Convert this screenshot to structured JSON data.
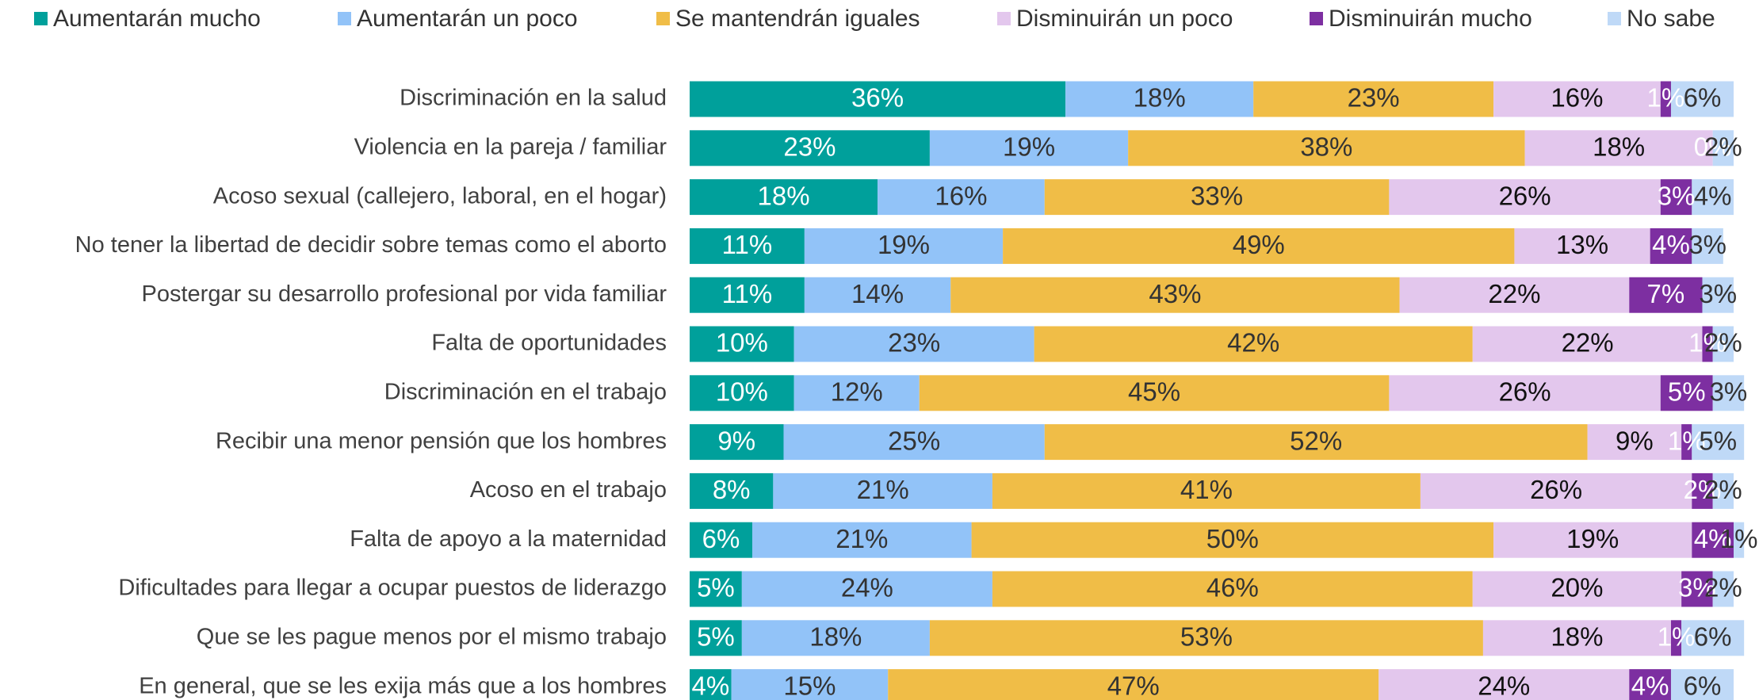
{
  "chart_data": {
    "type": "stacked-bar-horizontal",
    "categories": [
      "Discriminación en la salud",
      "Violencia en la pareja / familiar",
      "Acoso sexual (callejero, laboral, en el hogar)",
      "No tener la libertad de decidir sobre temas como el aborto",
      "Postergar su desarrollo profesional por vida familiar",
      "Falta de oportunidades",
      "Discriminación en el trabajo",
      "Recibir una menor pensión que los hombres",
      "Acoso en el trabajo",
      "Falta de apoyo a la maternidad",
      "Dificultades para llegar a ocupar puestos de liderazgo",
      "Que se les pague menos por el mismo trabajo",
      "En general, que se les exija más que a los hombres"
    ],
    "xlim": [
      0,
      100
    ],
    "series": [
      {
        "name": "Aumentarán mucho",
        "color": "#00a09b",
        "label_color": "#ffffff",
        "values": [
          36,
          23,
          18,
          11,
          11,
          10,
          10,
          9,
          8,
          6,
          5,
          5,
          4
        ],
        "value_labels": [
          "36%",
          "23%",
          "18%",
          "11%",
          "11%",
          "10%",
          "10%",
          "9%",
          "8%",
          "6%",
          "5%",
          "5%",
          "4%"
        ]
      },
      {
        "name": "Aumentarán un poco",
        "color": "#92c3f8",
        "label_color": "#333333",
        "values": [
          18,
          19,
          16,
          19,
          14,
          23,
          12,
          25,
          21,
          21,
          24,
          18,
          15
        ],
        "value_labels": [
          "18%",
          "19%",
          "16%",
          "19%",
          "14%",
          "23%",
          "12%",
          "25%",
          "21%",
          "21%",
          "24%",
          "18%",
          "15%"
        ]
      },
      {
        "name": "Se mantendrán iguales",
        "color": "#f0bd47",
        "label_color": "#333333",
        "values": [
          23,
          38,
          33,
          49,
          43,
          42,
          45,
          52,
          41,
          50,
          46,
          53,
          47
        ],
        "value_labels": [
          "23%",
          "38%",
          "33%",
          "49%",
          "43%",
          "42%",
          "45%",
          "52%",
          "41%",
          "50%",
          "46%",
          "53%",
          "47%"
        ]
      },
      {
        "name": "Disminuirán un poco",
        "color": "#e3c7ed",
        "label_color": "#111111",
        "values": [
          16,
          18,
          26,
          13,
          22,
          22,
          26,
          9,
          26,
          19,
          20,
          18,
          24
        ],
        "value_labels": [
          "16%",
          "18%",
          "26%",
          "13%",
          "22%",
          "22%",
          "26%",
          "9%",
          "26%",
          "19%",
          "20%",
          "18%",
          "24%"
        ]
      },
      {
        "name": "Disminuirán mucho",
        "color": "#7d2fa1",
        "label_color": "#ffffff",
        "values": [
          1,
          0,
          3,
          4,
          7,
          1,
          5,
          1,
          2,
          4,
          3,
          1,
          4
        ],
        "value_labels": [
          "1%",
          "0%",
          "3%",
          "4%",
          "7%",
          "1%",
          "5%",
          "1%",
          "2%",
          "4%",
          "3%",
          "1%",
          "4%"
        ]
      },
      {
        "name": "No sabe",
        "color": "#bfd9f7",
        "label_color": "#333333",
        "values": [
          6,
          2,
          4,
          3,
          3,
          2,
          3,
          5,
          2,
          1,
          2,
          6,
          6
        ],
        "value_labels": [
          "6%",
          "2%",
          "4%",
          "3%",
          "3%",
          "2%",
          "3%",
          "5%",
          "2%",
          "1%",
          "2%",
          "6%",
          "6%"
        ]
      }
    ],
    "legend": "top"
  }
}
